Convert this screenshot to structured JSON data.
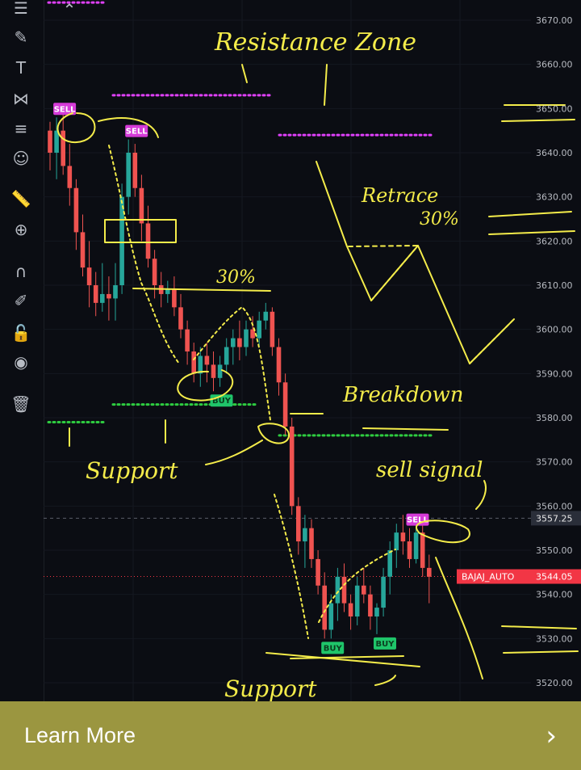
{
  "toolbar": {
    "tools": [
      {
        "name": "menu-icon",
        "glyph": "☰"
      },
      {
        "name": "brush-icon",
        "glyph": "✎"
      },
      {
        "name": "text-tool-icon",
        "glyph": "T"
      },
      {
        "name": "pattern-icon",
        "glyph": "⋈"
      },
      {
        "name": "fib-icon",
        "glyph": "≡"
      },
      {
        "name": "emoji-icon",
        "glyph": "☺"
      },
      {
        "name": "ruler-icon",
        "glyph": "📏"
      },
      {
        "name": "zoom-icon",
        "glyph": "⊕"
      },
      {
        "name": "magnet-icon",
        "glyph": "∩"
      },
      {
        "name": "pencil-lock-icon",
        "glyph": "✐"
      },
      {
        "name": "lock-icon",
        "glyph": "🔓"
      },
      {
        "name": "eye-icon",
        "glyph": "◉"
      },
      {
        "name": "trash-icon",
        "glyph": "🗑"
      }
    ],
    "collapse_glyph": "⌃"
  },
  "chart_data": {
    "type": "candlestick",
    "symbol": "BAJAJ_AUTO",
    "current_price": "3544.05",
    "crosshair_price": "3557.25",
    "ylim": [
      3515,
      3672
    ],
    "y_ticks": [
      "3670.00",
      "3660.00",
      "3650.00",
      "3640.00",
      "3630.00",
      "3620.00",
      "3610.00",
      "3600.00",
      "3590.00",
      "3580.00",
      "3570.00",
      "3560.00",
      "3550.00",
      "3540.00",
      "3530.00",
      "3520.00"
    ],
    "colors": {
      "up": "#26a69a",
      "down": "#ef5350",
      "annotation": "#f4ec4a",
      "resistance": "#e040fb",
      "support": "#2ecc40",
      "price_tag": "#f23645"
    },
    "candles": [
      [
        3645,
        3647,
        3636,
        3640
      ],
      [
        3640,
        3648,
        3634,
        3645
      ],
      [
        3645,
        3649,
        3635,
        3637
      ],
      [
        3637,
        3642,
        3628,
        3632
      ],
      [
        3632,
        3634,
        3618,
        3622
      ],
      [
        3622,
        3626,
        3612,
        3614
      ],
      [
        3614,
        3620,
        3605,
        3610
      ],
      [
        3610,
        3613,
        3603,
        3606
      ],
      [
        3606,
        3615,
        3604,
        3608
      ],
      [
        3608,
        3612,
        3602,
        3607
      ],
      [
        3607,
        3615,
        3602,
        3610
      ],
      [
        3610,
        3633,
        3608,
        3630
      ],
      [
        3630,
        3643,
        3626,
        3640
      ],
      [
        3640,
        3642,
        3630,
        3632
      ],
      [
        3632,
        3635,
        3620,
        3624
      ],
      [
        3624,
        3628,
        3614,
        3616
      ],
      [
        3616,
        3618,
        3607,
        3610
      ],
      [
        3610,
        3613,
        3605,
        3608
      ],
      [
        3608,
        3611,
        3606,
        3609
      ],
      [
        3609,
        3612,
        3603,
        3605
      ],
      [
        3605,
        3608,
        3598,
        3600
      ],
      [
        3600,
        3602,
        3592,
        3595
      ],
      [
        3595,
        3597,
        3588,
        3590
      ],
      [
        3590,
        3596,
        3587,
        3594
      ],
      [
        3594,
        3597,
        3588,
        3592
      ],
      [
        3592,
        3595,
        3586,
        3589
      ],
      [
        3589,
        3594,
        3587,
        3592
      ],
      [
        3592,
        3598,
        3590,
        3596
      ],
      [
        3596,
        3600,
        3592,
        3598
      ],
      [
        3598,
        3602,
        3593,
        3596
      ],
      [
        3596,
        3602,
        3594,
        3600
      ],
      [
        3600,
        3603,
        3596,
        3598
      ],
      [
        3598,
        3604,
        3596,
        3602
      ],
      [
        3602,
        3606,
        3600,
        3604
      ],
      [
        3604,
        3605,
        3594,
        3596
      ],
      [
        3596,
        3598,
        3585,
        3588
      ],
      [
        3588,
        3590,
        3576,
        3578
      ],
      [
        3578,
        3580,
        3558,
        3560
      ],
      [
        3560,
        3562,
        3549,
        3552
      ],
      [
        3552,
        3558,
        3546,
        3555
      ],
      [
        3555,
        3557,
        3546,
        3548
      ],
      [
        3548,
        3550,
        3540,
        3542
      ],
      [
        3542,
        3545,
        3530,
        3532
      ],
      [
        3532,
        3540,
        3530,
        3538
      ],
      [
        3538,
        3546,
        3534,
        3544
      ],
      [
        3544,
        3547,
        3536,
        3538
      ],
      [
        3538,
        3540,
        3532,
        3535
      ],
      [
        3535,
        3544,
        3533,
        3542
      ],
      [
        3542,
        3546,
        3538,
        3540
      ],
      [
        3540,
        3542,
        3532,
        3535
      ],
      [
        3535,
        3538,
        3531,
        3537
      ],
      [
        3537,
        3546,
        3535,
        3544
      ],
      [
        3544,
        3552,
        3540,
        3550
      ],
      [
        3550,
        3556,
        3546,
        3554
      ],
      [
        3554,
        3558,
        3549,
        3552
      ],
      [
        3552,
        3555,
        3546,
        3548
      ],
      [
        3548,
        3556,
        3547,
        3554
      ],
      [
        3554,
        3558,
        3544,
        3546
      ],
      [
        3546,
        3549,
        3538,
        3544
      ]
    ],
    "signals": [
      {
        "label": "SELL",
        "candle": 1,
        "kind": "sell"
      },
      {
        "label": "SELL",
        "candle": 12,
        "kind": "sell"
      },
      {
        "label": "BUY",
        "candle": 25,
        "kind": "buy"
      },
      {
        "label": "BUY",
        "candle": 42,
        "kind": "buy"
      },
      {
        "label": "BUY",
        "candle": 50,
        "kind": "buy"
      },
      {
        "label": "SELL",
        "candle": 55,
        "kind": "sell"
      }
    ],
    "resistance_levels": [
      3650,
      3643
    ],
    "support_levels": [
      3582,
      3580,
      3578
    ],
    "annotations": {
      "resistance_zone": "Resistance Zone",
      "retrace": "Retrace",
      "retrace_pct": "30%",
      "pullback_pct": "30%",
      "breakdown": "Breakdown",
      "support_left": "Support",
      "support_bottom": "Support",
      "sell_signal": "sell signal"
    }
  },
  "banner": {
    "label": "Learn More",
    "chevron": "›"
  }
}
